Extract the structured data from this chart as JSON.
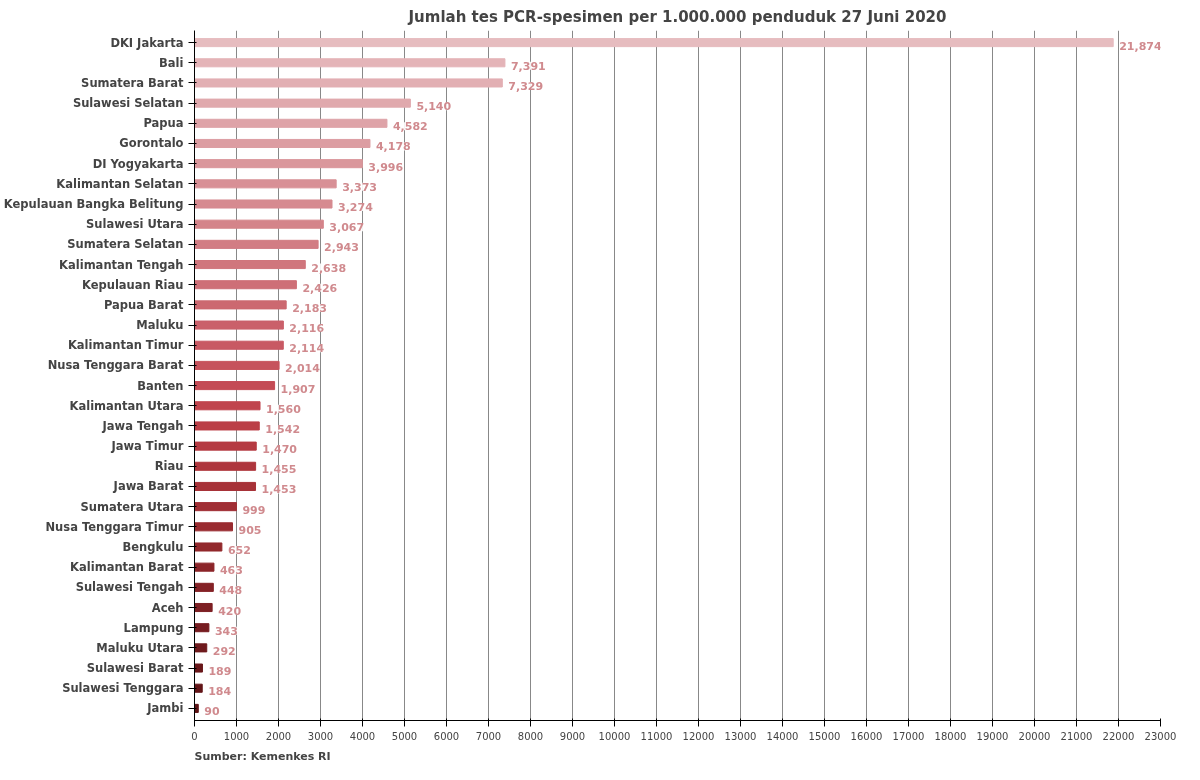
{
  "chart_data": {
    "type": "bar",
    "orientation": "horizontal",
    "title": "Jumlah tes PCR-spesimen per 1.000.000 penduduk 27 Juni 2020",
    "categories": [
      "DKI Jakarta",
      "Bali",
      "Sumatera Barat",
      "Sulawesi Selatan",
      "Papua",
      "Gorontalo",
      "DI Yogyakarta",
      "Kalimantan Selatan",
      "Kepulauan Bangka Belitung",
      "Sulawesi Utara",
      "Sumatera Selatan",
      "Kalimantan Tengah",
      "Kepulauan Riau",
      "Papua Barat",
      "Maluku",
      "Kalimantan Timur",
      "Nusa Tenggara Barat",
      "Banten",
      "Kalimantan Utara",
      "Jawa Tengah",
      "Jawa Timur",
      "Riau",
      "Jawa Barat",
      "Sumatera Utara",
      "Nusa Tenggara Timur",
      "Bengkulu",
      "Kalimantan Barat",
      "Sulawesi Tengah",
      "Aceh",
      "Lampung",
      "Maluku Utara",
      "Sulawesi Barat",
      "Sulawesi Tenggara",
      "Jambi"
    ],
    "values": [
      21874,
      7391,
      7329,
      5140,
      4582,
      4178,
      3996,
      3373,
      3274,
      3067,
      2943,
      2638,
      2426,
      2183,
      2116,
      2114,
      2014,
      1907,
      1560,
      1542,
      1470,
      1455,
      1453,
      999,
      905,
      652,
      463,
      448,
      420,
      343,
      292,
      189,
      184,
      90
    ],
    "value_labels": [
      "21,874",
      "7,391",
      "7,329",
      "5,140",
      "4,582",
      "4,178",
      "3,996",
      "3,373",
      "3,274",
      "3,067",
      "2,943",
      "2,638",
      "2,426",
      "2,183",
      "2,116",
      "2,114",
      "2,014",
      "1,907",
      "1,560",
      "1,542",
      "1,470",
      "1,455",
      "1,453",
      "999",
      "905",
      "652",
      "463",
      "448",
      "420",
      "343",
      "292",
      "189",
      "184",
      "90"
    ],
    "colors": [
      "#e6bcbf",
      "#e4b4b8",
      "#e2afb3",
      "#e0a9ad",
      "#dea3a8",
      "#dc9da2",
      "#da979c",
      "#d89096",
      "#d68a90",
      "#d4848a",
      "#d27d84",
      "#d0767d",
      "#ce6f77",
      "#cc6870",
      "#ca606a",
      "#c85963",
      "#c6525c",
      "#c44b55",
      "#c0444d",
      "#bb3f47",
      "#b53a42",
      "#ae363d",
      "#a73238",
      "#a02e34",
      "#992b30",
      "#92282c",
      "#8b2529",
      "#842226",
      "#7d1f23",
      "#761c20",
      "#6f1a1d",
      "#69171a",
      "#631518",
      "#5d1315"
    ],
    "xlim": [
      0,
      23000
    ],
    "xticks": [
      0,
      1000,
      2000,
      3000,
      4000,
      5000,
      6000,
      7000,
      8000,
      9000,
      10000,
      11000,
      12000,
      13000,
      14000,
      15000,
      16000,
      17000,
      18000,
      19000,
      20000,
      21000,
      22000,
      23000
    ],
    "grid": "x",
    "annotations": [
      "Sumber: Kemenkes RI"
    ]
  }
}
